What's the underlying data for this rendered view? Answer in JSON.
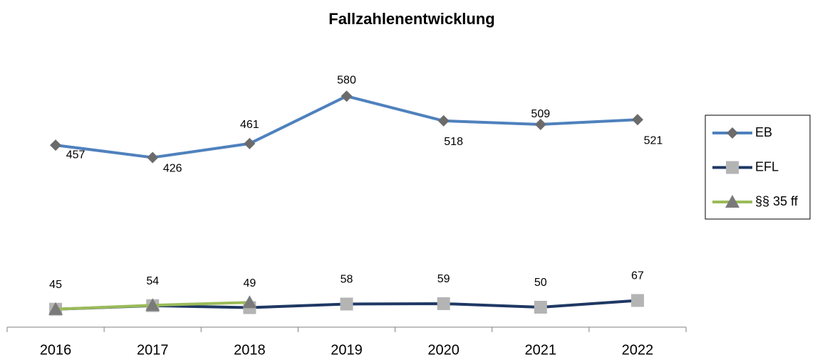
{
  "chart_data": {
    "type": "line",
    "title": "Fallzahlenentwicklung",
    "categories": [
      "2016",
      "2017",
      "2018",
      "2019",
      "2020",
      "2021",
      "2022"
    ],
    "ylim": [
      0,
      700
    ],
    "series": [
      {
        "name": "EB",
        "color": "#4f81bd",
        "marker": "diamond",
        "marker_color": "#6b6b6b",
        "show_labels": true,
        "values": [
          457,
          426,
          461,
          580,
          518,
          509,
          521
        ]
      },
      {
        "name": "EFL",
        "color": "#1f3864",
        "marker": "square",
        "marker_color": "#b4b4b4",
        "show_labels": true,
        "values": [
          45,
          54,
          49,
          58,
          59,
          50,
          67
        ]
      },
      {
        "name": "§§ 35 ff",
        "color": "#9bbb59",
        "marker": "triangle",
        "marker_color": "#7a7a7a",
        "show_labels": false,
        "values": [
          45,
          55,
          62,
          null,
          null,
          null,
          null
        ]
      }
    ],
    "legend": "right"
  }
}
